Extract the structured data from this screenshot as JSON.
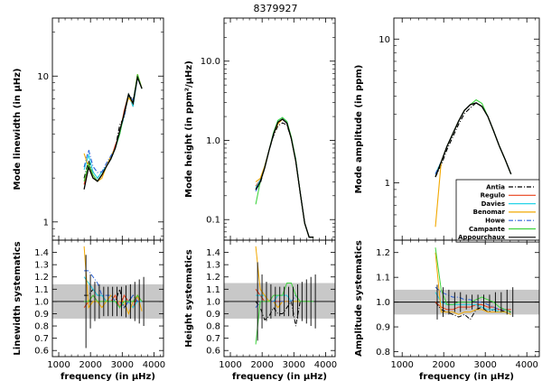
{
  "figure_title": "8379927",
  "chart_data": {
    "type": "line",
    "title": "8379927",
    "x": [
      1800,
      1940,
      2080,
      2220,
      2360,
      2500,
      2640,
      2780,
      2920,
      3060,
      3200,
      3340,
      3480,
      3620
    ],
    "xlim": [
      800,
      4300
    ],
    "xticks": [
      1000,
      2000,
      3000,
      4000
    ],
    "xtick_labels": [
      "1000",
      "2000",
      "3000",
      "4000"
    ],
    "xlabel": "frequency (in μHz)",
    "legend": {
      "placement": "lower-right of third top panel",
      "entries": [
        {
          "name": "Antia",
          "color": "#000000",
          "dash": "dashdot"
        },
        {
          "name": "Regulo",
          "color": "#e8401a",
          "dash": "solid"
        },
        {
          "name": "Davies",
          "color": "#26d4e8",
          "dash": "solid"
        },
        {
          "name": "Benomar",
          "color": "#f2a800",
          "dash": "solid"
        },
        {
          "name": "Howe",
          "color": "#2a62d8",
          "dash": "dashdot"
        },
        {
          "name": "Campante",
          "color": "#3ed33e",
          "dash": "solid"
        },
        {
          "name": "Appourchaux",
          "color": "#000000",
          "dash": "solid"
        }
      ]
    },
    "panels": [
      {
        "name": "linewidth",
        "scale": "log",
        "ylabel": "Mode linewidth (in μHz)",
        "ylim": [
          0.75,
          25
        ],
        "yticks": [
          1,
          10
        ],
        "ytick_labels": [
          "1",
          "10"
        ],
        "base": [
          1.9,
          2.5,
          2.0,
          1.9,
          2.1,
          2.4,
          2.7,
          3.2,
          4.2,
          5.5,
          7.5,
          6.5,
          9.8,
          8.2
        ],
        "offsets": [
          [
            1.05,
            1.05,
            1.1,
            1.05,
            1.05,
            1.0,
            1.0,
            1.0,
            1.1,
            0.95,
            1.0,
            1.05,
            1.0,
            1.0
          ],
          [
            0.95,
            1.0,
            1.05,
            1.0,
            1.0,
            1.0,
            1.0,
            1.05,
            0.95,
            1.05,
            1.0,
            0.95,
            1.05,
            1.0
          ],
          [
            1.2,
            1.15,
            1.1,
            1.05,
            1.05,
            1.0,
            1.0,
            1.0,
            0.95,
            1.0,
            1.0,
            0.95,
            1.0,
            1.0
          ],
          [
            1.55,
            0.95,
            1.0,
            1.0,
            0.95,
            1.0,
            1.05,
            1.0,
            1.0,
            1.0,
            0.95,
            1.0,
            1.05,
            1.0
          ],
          [
            1.25,
            1.25,
            1.2,
            1.15,
            1.05,
            1.05,
            1.05,
            1.0,
            1.0,
            0.95,
            1.0,
            1.05,
            1.0,
            1.0
          ],
          [
            1.0,
            1.0,
            1.05,
            1.0,
            1.0,
            1.0,
            1.0,
            1.0,
            0.95,
            1.0,
            1.0,
            1.0,
            1.05,
            1.0
          ],
          [
            0.88,
            0.95,
            1.0,
            1.0,
            1.0,
            1.0,
            1.0,
            1.0,
            1.0,
            1.0,
            1.0,
            1.0,
            1.0,
            1.0
          ]
        ]
      },
      {
        "name": "height",
        "scale": "log",
        "ylabel": "Mode height (in ppm²/μHz)",
        "ylim": [
          0.055,
          35
        ],
        "yticks": [
          0.1,
          1.0,
          10.0
        ],
        "ytick_labels": [
          "0.1",
          "1.0",
          "10.0"
        ],
        "base": [
          0.24,
          0.3,
          0.45,
          0.75,
          1.2,
          1.7,
          1.85,
          1.65,
          1.05,
          0.55,
          0.22,
          0.09,
          0.06,
          0.06
        ],
        "offsets": [
          [
            1.0,
            0.95,
            1.0,
            1.0,
            0.95,
            0.9,
            0.9,
            0.95,
            1.0,
            1.0,
            1.0,
            1.0,
            1.0,
            1.0
          ],
          [
            1.1,
            1.05,
            1.0,
            1.0,
            1.0,
            1.0,
            1.0,
            1.0,
            1.0,
            1.0,
            1.0,
            1.0,
            1.0,
            1.0
          ],
          [
            1.05,
            1.05,
            1.05,
            1.0,
            1.0,
            1.05,
            1.05,
            1.05,
            1.0,
            1.0,
            1.0,
            1.0,
            1.0,
            1.0
          ],
          [
            1.25,
            1.1,
            1.05,
            1.0,
            1.0,
            0.95,
            1.0,
            1.0,
            1.0,
            1.0,
            1.0,
            1.0,
            1.0,
            1.0
          ],
          [
            0.95,
            1.0,
            1.0,
            1.0,
            1.0,
            1.0,
            1.0,
            1.0,
            1.0,
            1.05,
            1.0,
            1.0,
            1.0,
            1.0
          ],
          [
            0.65,
            1.0,
            1.0,
            1.0,
            1.05,
            1.05,
            1.05,
            1.05,
            1.05,
            1.05,
            1.0,
            1.0,
            1.0,
            1.0
          ],
          [
            1.0,
            1.0,
            1.0,
            1.0,
            1.0,
            1.0,
            1.0,
            1.0,
            1.0,
            1.0,
            1.0,
            1.0,
            1.0,
            1.0
          ]
        ]
      },
      {
        "name": "amplitude",
        "scale": "log",
        "ylabel": "Mode amplitude (in ppm)",
        "ylim": [
          0.4,
          14
        ],
        "yticks": [
          1,
          10
        ],
        "ytick_labels": [
          "1",
          "10"
        ],
        "base": [
          1.1,
          1.4,
          1.8,
          2.2,
          2.7,
          3.2,
          3.5,
          3.6,
          3.4,
          2.9,
          2.3,
          1.8,
          1.45,
          1.15
        ],
        "offsets": [
          [
            1.0,
            0.95,
            0.95,
            0.95,
            0.95,
            0.95,
            0.95,
            1.0,
            1.0,
            1.0,
            1.0,
            1.0,
            1.0,
            1.0
          ],
          [
            1.0,
            1.0,
            1.0,
            1.0,
            1.0,
            1.0,
            1.0,
            1.0,
            1.0,
            1.0,
            1.0,
            1.0,
            1.0,
            1.0
          ],
          [
            1.05,
            1.0,
            1.0,
            1.0,
            1.0,
            1.0,
            1.0,
            1.0,
            1.0,
            1.0,
            1.0,
            1.0,
            1.0,
            1.0
          ],
          [
            0.45,
            1.0,
            1.0,
            1.0,
            1.0,
            1.0,
            1.0,
            1.0,
            1.0,
            1.0,
            1.0,
            1.0,
            1.0,
            1.0
          ],
          [
            1.05,
            1.0,
            1.0,
            1.0,
            1.0,
            1.0,
            1.0,
            1.0,
            1.0,
            1.0,
            1.0,
            1.0,
            1.0,
            1.0
          ],
          [
            1.0,
            1.0,
            1.0,
            1.0,
            1.0,
            1.0,
            1.0,
            1.05,
            1.05,
            1.0,
            1.0,
            1.0,
            1.0,
            1.0
          ],
          [
            1.0,
            1.0,
            1.0,
            1.0,
            1.0,
            1.0,
            1.0,
            1.0,
            1.0,
            1.0,
            1.0,
            1.0,
            1.0,
            1.0
          ]
        ]
      }
    ],
    "systematics_panels": [
      {
        "ylabel": "Linewidth systematics",
        "ylim": [
          0.55,
          1.5
        ],
        "yticks": [
          0.6,
          0.7,
          0.8,
          0.9,
          1.0,
          1.1,
          1.2,
          1.3,
          1.4
        ],
        "ytick_labels": [
          "0.6",
          "0.7",
          "0.8",
          "0.9",
          "1.0",
          "1.1",
          "1.2",
          "1.3",
          "1.4"
        ],
        "band": [
          0.86,
          1.14
        ],
        "reference": 1.0,
        "error_half_widths": [
          0.38,
          0.22,
          0.16,
          0.14,
          0.12,
          0.12,
          0.12,
          0.12,
          0.12,
          0.13,
          0.14,
          0.16,
          0.18,
          0.2
        ],
        "series": [
          [
            1.05,
            1.05,
            1.1,
            1.05,
            1.05,
            1.0,
            1.0,
            1.0,
            1.1,
            0.95,
            1.0,
            1.05,
            1.0,
            1.0
          ],
          [
            0.95,
            1.0,
            1.05,
            1.0,
            1.0,
            1.0,
            1.0,
            1.05,
            0.95,
            1.05,
            1.0,
            0.95,
            1.05,
            1.0
          ],
          [
            1.2,
            1.15,
            1.1,
            1.05,
            1.05,
            1.0,
            1.0,
            1.0,
            0.95,
            1.0,
            1.0,
            0.95,
            1.0,
            1.0
          ],
          [
            1.45,
            0.95,
            1.0,
            1.0,
            0.95,
            1.0,
            1.05,
            1.0,
            1.0,
            1.0,
            0.9,
            1.0,
            1.05,
            0.92
          ],
          [
            1.25,
            1.25,
            1.2,
            1.15,
            1.05,
            1.05,
            1.05,
            1.0,
            1.0,
            0.95,
            1.0,
            1.05,
            1.0,
            1.0
          ],
          [
            1.0,
            1.0,
            1.05,
            1.0,
            1.0,
            1.0,
            1.0,
            1.0,
            0.95,
            1.0,
            1.0,
            1.0,
            1.05,
            1.0
          ],
          [
            1.0,
            1.0,
            1.0,
            1.0,
            1.0,
            1.0,
            1.0,
            1.0,
            1.0,
            1.0,
            1.0,
            1.0,
            1.0,
            1.0
          ]
        ]
      },
      {
        "ylabel": "Height systematics",
        "ylim": [
          0.55,
          1.5
        ],
        "yticks": [
          0.6,
          0.7,
          0.8,
          0.9,
          1.0,
          1.1,
          1.2,
          1.3,
          1.4
        ],
        "ytick_labels": [
          "0.6",
          "0.7",
          "0.8",
          "0.9",
          "1.0",
          "1.1",
          "1.2",
          "1.3",
          "1.4"
        ],
        "band": [
          0.86,
          1.15
        ],
        "reference": 1.0,
        "error_half_widths": [
          0.32,
          0.22,
          0.16,
          0.14,
          0.12,
          0.12,
          0.12,
          0.12,
          0.12,
          0.14,
          0.16,
          0.18,
          0.2,
          0.22
        ],
        "series": [
          [
            1.0,
            0.95,
            0.85,
            0.88,
            0.95,
            0.9,
            0.9,
            0.95,
            1.0,
            0.8,
            1.0,
            1.0,
            1.0,
            1.0
          ],
          [
            1.1,
            1.05,
            1.0,
            1.0,
            1.0,
            1.0,
            1.0,
            1.0,
            1.0,
            1.0,
            1.0,
            1.0,
            1.0,
            1.0
          ],
          [
            1.05,
            1.05,
            1.05,
            1.0,
            1.0,
            1.05,
            1.05,
            1.05,
            1.0,
            1.0,
            1.0,
            1.0,
            1.0,
            1.0
          ],
          [
            1.45,
            1.1,
            1.05,
            1.0,
            1.0,
            0.95,
            1.0,
            1.0,
            1.0,
            1.0,
            1.0,
            1.0,
            1.0,
            1.0
          ],
          [
            0.95,
            1.0,
            1.0,
            1.0,
            1.0,
            1.0,
            1.0,
            1.0,
            1.0,
            1.05,
            1.0,
            1.0,
            1.0,
            1.0
          ],
          [
            0.65,
            1.0,
            1.0,
            1.0,
            1.05,
            1.05,
            1.05,
            1.15,
            1.15,
            1.05,
            1.0,
            1.0,
            1.0,
            1.0
          ],
          [
            1.0,
            1.0,
            1.0,
            1.0,
            1.0,
            1.0,
            1.0,
            1.0,
            1.0,
            1.0,
            1.0,
            1.0,
            1.0,
            1.0
          ]
        ]
      },
      {
        "ylabel": "Amplitude systematics",
        "ylim": [
          0.78,
          1.25
        ],
        "yticks": [
          0.8,
          0.9,
          1.0,
          1.1,
          1.2
        ],
        "ytick_labels": [
          "0.8",
          "0.9",
          "1.0",
          "1.1",
          "1.2"
        ],
        "band": [
          0.95,
          1.05
        ],
        "reference": 1.0,
        "error_half_widths": [
          0.07,
          0.06,
          0.05,
          0.04,
          0.04,
          0.03,
          0.03,
          0.03,
          0.03,
          0.03,
          0.04,
          0.04,
          0.05,
          0.06
        ],
        "series": [
          [
            1.0,
            0.97,
            0.96,
            0.95,
            0.94,
            0.95,
            0.93,
            0.97,
            0.98,
            0.96,
            0.97,
            0.97,
            0.96,
            0.96
          ],
          [
            1.0,
            0.98,
            0.97,
            0.97,
            0.98,
            0.98,
            0.98,
            0.99,
            0.99,
            0.98,
            0.98,
            0.97,
            0.97,
            0.97
          ],
          [
            1.04,
            1.0,
            0.99,
            0.99,
            0.99,
            0.99,
            0.99,
            0.99,
            0.98,
            0.97,
            0.97,
            0.96,
            0.96,
            0.95
          ],
          [
            1.2,
            0.96,
            0.96,
            0.96,
            0.95,
            0.96,
            0.96,
            0.97,
            0.97,
            0.96,
            0.96,
            0.96,
            0.96,
            0.95
          ],
          [
            1.06,
            1.04,
            1.03,
            1.02,
            1.02,
            1.01,
            1.01,
            1.0,
            1.0,
            0.99,
            0.98,
            0.97,
            0.97,
            0.96
          ],
          [
            1.22,
            1.05,
            0.99,
            0.99,
            1.0,
            1.0,
            1.0,
            1.01,
            1.02,
            1.01,
            1.0,
            0.98,
            0.97,
            0.96
          ],
          [
            1.0,
            1.0,
            1.0,
            1.0,
            1.0,
            1.0,
            1.0,
            1.0,
            1.0,
            1.0,
            1.0,
            1.0,
            1.0,
            1.0
          ]
        ]
      }
    ]
  }
}
